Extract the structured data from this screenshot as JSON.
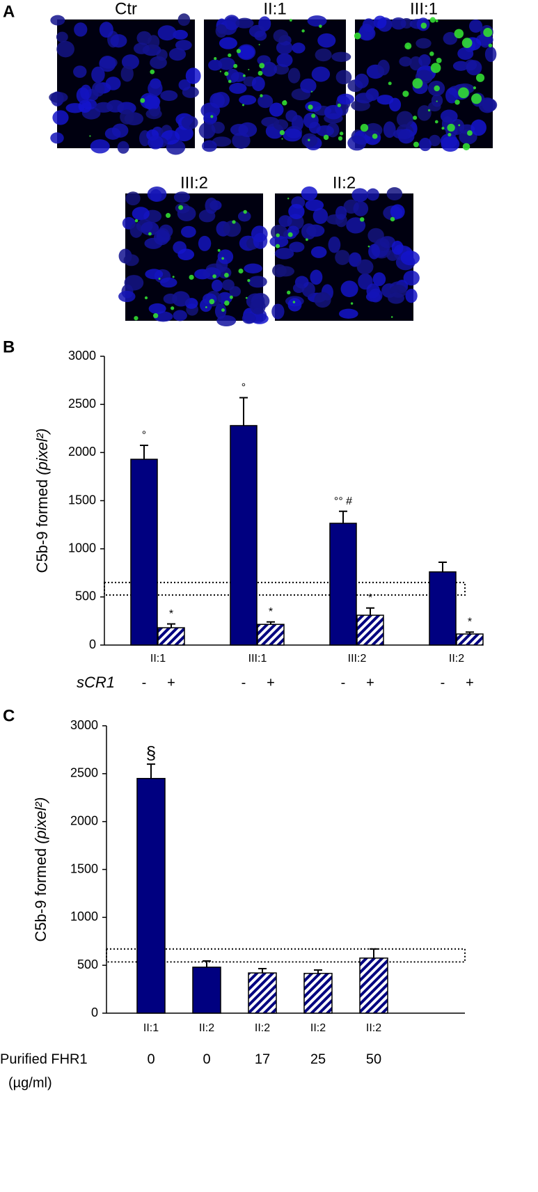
{
  "panel_a": {
    "label": "A",
    "images": [
      "Ctr",
      "II:1",
      "III:1",
      "III:2",
      "II:2"
    ]
  },
  "chart_data": [
    {
      "label": "B",
      "type": "grouped-bar",
      "ylabel": "C5b-9 formed",
      "ylabel_unit": "(pixel²)",
      "categories": [
        "II:1",
        "III:1",
        "III:2",
        "II:2"
      ],
      "group_label": "sCR1",
      "series": [
        {
          "name": "-",
          "color": "#000080",
          "fill": "solid",
          "values": [
            1930,
            2280,
            1265,
            760
          ],
          "errors": [
            145,
            290,
            125,
            100
          ],
          "annotations": [
            "°",
            "°",
            "°° #",
            null
          ]
        },
        {
          "name": "+",
          "color": "#000080",
          "fill": "hatched",
          "values": [
            180,
            215,
            310,
            115
          ],
          "errors": [
            40,
            25,
            75,
            20
          ],
          "annotations": [
            "*",
            "*",
            "*",
            "*"
          ]
        }
      ],
      "ylim": [
        0,
        3000
      ],
      "yticks": [
        0,
        500,
        1000,
        1500,
        2000,
        2500,
        3000
      ],
      "ref_band": [
        520,
        650
      ]
    },
    {
      "label": "C",
      "type": "bar",
      "ylabel": "C5b-9 formed",
      "ylabel_unit": "(pixel²)",
      "categories": [
        "II:1",
        "II:2",
        "II:2",
        "II:2",
        "II:2"
      ],
      "values": [
        2450,
        480,
        420,
        415,
        575
      ],
      "errors": [
        150,
        65,
        45,
        35,
        95
      ],
      "fills": [
        "solid",
        "solid",
        "hatched",
        "hatched",
        "hatched"
      ],
      "color": "#000080",
      "annotations": [
        "§",
        null,
        null,
        null,
        null
      ],
      "x2_label": [
        "Purified FHR1",
        "(µg/ml)"
      ],
      "x2_values": [
        0,
        0,
        17,
        25,
        50
      ],
      "ylim": [
        0,
        3000
      ],
      "yticks": [
        0,
        500,
        1000,
        1500,
        2000,
        2500,
        3000
      ],
      "ref_band": [
        535,
        670
      ]
    }
  ]
}
